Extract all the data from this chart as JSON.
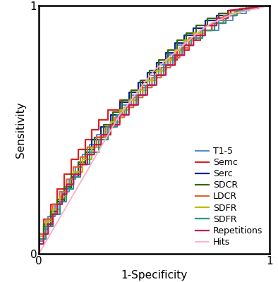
{
  "title": "",
  "xlabel": "1-Specificity",
  "ylabel": "Sensitivity",
  "xlim": [
    0,
    1
  ],
  "ylim": [
    0,
    1
  ],
  "xticks": [
    0,
    1
  ],
  "yticks": [
    0,
    1
  ],
  "grid": true,
  "background_color": "#ffffff",
  "curves": [
    {
      "label": "T1-5",
      "color": "#5588cc",
      "lw": 1.4,
      "x": [
        0,
        0,
        0.02,
        0.02,
        0.04,
        0.04,
        0.07,
        0.07,
        0.1,
        0.1,
        0.13,
        0.13,
        0.16,
        0.16,
        0.19,
        0.19,
        0.22,
        0.22,
        0.25,
        0.25,
        0.28,
        0.28,
        0.32,
        0.32,
        0.36,
        0.36,
        0.4,
        0.4,
        0.44,
        0.44,
        0.48,
        0.48,
        0.52,
        0.52,
        0.56,
        0.56,
        0.6,
        0.6,
        0.64,
        0.64,
        0.68,
        0.68,
        0.72,
        0.72,
        0.78,
        0.78,
        0.84,
        0.84,
        0.9,
        0.9,
        1.0
      ],
      "y": [
        0,
        0.05,
        0.05,
        0.1,
        0.1,
        0.15,
        0.15,
        0.2,
        0.2,
        0.25,
        0.25,
        0.3,
        0.3,
        0.35,
        0.35,
        0.4,
        0.4,
        0.44,
        0.44,
        0.48,
        0.48,
        0.52,
        0.52,
        0.56,
        0.56,
        0.6,
        0.6,
        0.64,
        0.64,
        0.68,
        0.68,
        0.72,
        0.72,
        0.76,
        0.76,
        0.8,
        0.8,
        0.84,
        0.84,
        0.86,
        0.86,
        0.88,
        0.88,
        0.9,
        0.9,
        0.94,
        0.94,
        0.97,
        0.97,
        1.0,
        1.0
      ]
    },
    {
      "label": "Semc",
      "color": "#dd2222",
      "lw": 1.6,
      "x": [
        0,
        0,
        0.02,
        0.02,
        0.05,
        0.05,
        0.08,
        0.08,
        0.11,
        0.11,
        0.14,
        0.14,
        0.17,
        0.17,
        0.2,
        0.2,
        0.23,
        0.23,
        0.26,
        0.26,
        0.3,
        0.3,
        0.35,
        0.35,
        0.4,
        0.4,
        0.45,
        0.45,
        0.5,
        0.5,
        0.55,
        0.55,
        0.6,
        0.6,
        0.65,
        0.65,
        0.7,
        0.7,
        0.75,
        0.75,
        0.8,
        0.8,
        0.85,
        0.85,
        0.9,
        0.9,
        0.95,
        0.95,
        1.0
      ],
      "y": [
        0,
        0.08,
        0.08,
        0.14,
        0.14,
        0.2,
        0.2,
        0.26,
        0.26,
        0.32,
        0.32,
        0.38,
        0.38,
        0.42,
        0.42,
        0.46,
        0.46,
        0.5,
        0.5,
        0.54,
        0.54,
        0.58,
        0.58,
        0.62,
        0.62,
        0.66,
        0.66,
        0.7,
        0.7,
        0.74,
        0.74,
        0.78,
        0.78,
        0.82,
        0.82,
        0.86,
        0.86,
        0.9,
        0.9,
        0.93,
        0.93,
        0.96,
        0.96,
        0.98,
        0.98,
        0.99,
        0.99,
        1.0,
        1.0
      ]
    },
    {
      "label": "Serc",
      "color": "#002299",
      "lw": 1.6,
      "x": [
        0,
        0,
        0.02,
        0.02,
        0.05,
        0.05,
        0.08,
        0.08,
        0.11,
        0.11,
        0.14,
        0.14,
        0.17,
        0.17,
        0.2,
        0.2,
        0.23,
        0.23,
        0.27,
        0.27,
        0.31,
        0.31,
        0.35,
        0.35,
        0.39,
        0.39,
        0.43,
        0.43,
        0.47,
        0.47,
        0.51,
        0.51,
        0.55,
        0.55,
        0.59,
        0.59,
        0.63,
        0.63,
        0.67,
        0.67,
        0.72,
        0.72,
        0.77,
        0.77,
        0.82,
        0.82,
        0.87,
        0.87,
        0.92,
        0.92,
        1.0
      ],
      "y": [
        0,
        0.06,
        0.06,
        0.11,
        0.11,
        0.16,
        0.16,
        0.21,
        0.21,
        0.26,
        0.26,
        0.31,
        0.31,
        0.36,
        0.36,
        0.41,
        0.41,
        0.46,
        0.46,
        0.51,
        0.51,
        0.56,
        0.56,
        0.61,
        0.61,
        0.65,
        0.65,
        0.69,
        0.69,
        0.73,
        0.73,
        0.77,
        0.77,
        0.81,
        0.81,
        0.85,
        0.85,
        0.88,
        0.88,
        0.91,
        0.91,
        0.94,
        0.94,
        0.96,
        0.96,
        0.98,
        0.98,
        0.99,
        0.99,
        1.0,
        1.0
      ]
    },
    {
      "label": "SDCR",
      "color": "#336600",
      "lw": 1.6,
      "x": [
        0,
        0,
        0.02,
        0.02,
        0.05,
        0.05,
        0.08,
        0.08,
        0.11,
        0.11,
        0.14,
        0.14,
        0.17,
        0.17,
        0.2,
        0.2,
        0.24,
        0.24,
        0.28,
        0.28,
        0.32,
        0.32,
        0.36,
        0.36,
        0.4,
        0.4,
        0.44,
        0.44,
        0.48,
        0.48,
        0.52,
        0.52,
        0.56,
        0.56,
        0.6,
        0.6,
        0.64,
        0.64,
        0.68,
        0.68,
        0.73,
        0.73,
        0.78,
        0.78,
        0.83,
        0.83,
        0.88,
        0.88,
        0.93,
        0.93,
        1.0
      ],
      "y": [
        0,
        0.06,
        0.06,
        0.12,
        0.12,
        0.17,
        0.17,
        0.22,
        0.22,
        0.27,
        0.27,
        0.32,
        0.32,
        0.37,
        0.37,
        0.42,
        0.42,
        0.47,
        0.47,
        0.52,
        0.52,
        0.57,
        0.57,
        0.62,
        0.62,
        0.66,
        0.66,
        0.7,
        0.7,
        0.74,
        0.74,
        0.78,
        0.78,
        0.82,
        0.82,
        0.86,
        0.86,
        0.89,
        0.89,
        0.92,
        0.92,
        0.95,
        0.95,
        0.97,
        0.97,
        0.98,
        0.98,
        0.99,
        0.99,
        1.0,
        1.0
      ]
    },
    {
      "label": "LDCR",
      "color": "#dd6633",
      "lw": 1.6,
      "x": [
        0,
        0,
        0.03,
        0.03,
        0.06,
        0.06,
        0.09,
        0.09,
        0.12,
        0.12,
        0.15,
        0.15,
        0.18,
        0.18,
        0.21,
        0.21,
        0.25,
        0.25,
        0.29,
        0.29,
        0.33,
        0.33,
        0.37,
        0.37,
        0.41,
        0.41,
        0.45,
        0.45,
        0.49,
        0.49,
        0.53,
        0.53,
        0.57,
        0.57,
        0.61,
        0.61,
        0.65,
        0.65,
        0.7,
        0.7,
        0.75,
        0.75,
        0.8,
        0.8,
        0.85,
        0.85,
        0.9,
        0.9,
        1.0
      ],
      "y": [
        0,
        0.08,
        0.08,
        0.14,
        0.14,
        0.2,
        0.2,
        0.25,
        0.25,
        0.3,
        0.3,
        0.35,
        0.35,
        0.39,
        0.39,
        0.43,
        0.43,
        0.47,
        0.47,
        0.51,
        0.51,
        0.55,
        0.55,
        0.59,
        0.59,
        0.63,
        0.63,
        0.67,
        0.67,
        0.71,
        0.71,
        0.75,
        0.75,
        0.79,
        0.79,
        0.83,
        0.83,
        0.87,
        0.87,
        0.9,
        0.9,
        0.93,
        0.93,
        0.96,
        0.96,
        0.98,
        0.98,
        0.99,
        1.0
      ]
    },
    {
      "label": "SDFR",
      "color": "#bbbb00",
      "lw": 1.6,
      "x": [
        0,
        0,
        0.03,
        0.03,
        0.06,
        0.06,
        0.09,
        0.09,
        0.12,
        0.12,
        0.15,
        0.15,
        0.19,
        0.19,
        0.23,
        0.23,
        0.27,
        0.27,
        0.31,
        0.31,
        0.35,
        0.35,
        0.39,
        0.39,
        0.43,
        0.43,
        0.47,
        0.47,
        0.51,
        0.51,
        0.55,
        0.55,
        0.59,
        0.59,
        0.63,
        0.63,
        0.67,
        0.67,
        0.72,
        0.72,
        0.77,
        0.77,
        0.82,
        0.82,
        0.87,
        0.87,
        0.92,
        0.92,
        1.0
      ],
      "y": [
        0,
        0.07,
        0.07,
        0.13,
        0.13,
        0.18,
        0.18,
        0.23,
        0.23,
        0.28,
        0.28,
        0.33,
        0.33,
        0.38,
        0.38,
        0.43,
        0.43,
        0.48,
        0.48,
        0.53,
        0.53,
        0.58,
        0.58,
        0.62,
        0.62,
        0.66,
        0.66,
        0.7,
        0.7,
        0.74,
        0.74,
        0.78,
        0.78,
        0.82,
        0.82,
        0.86,
        0.86,
        0.89,
        0.89,
        0.92,
        0.92,
        0.95,
        0.95,
        0.97,
        0.97,
        0.99,
        0.99,
        1.0,
        1.0
      ]
    },
    {
      "label": "SDFR",
      "color": "#229988",
      "lw": 1.6,
      "x": [
        0,
        0,
        0.03,
        0.03,
        0.06,
        0.06,
        0.09,
        0.09,
        0.12,
        0.12,
        0.15,
        0.15,
        0.18,
        0.18,
        0.22,
        0.22,
        0.26,
        0.26,
        0.3,
        0.3,
        0.34,
        0.34,
        0.38,
        0.38,
        0.42,
        0.42,
        0.46,
        0.46,
        0.5,
        0.5,
        0.54,
        0.54,
        0.58,
        0.58,
        0.62,
        0.62,
        0.66,
        0.66,
        0.71,
        0.71,
        0.76,
        0.76,
        0.81,
        0.81,
        0.86,
        0.86,
        0.91,
        0.91,
        1.0
      ],
      "y": [
        0,
        0.06,
        0.06,
        0.11,
        0.11,
        0.16,
        0.16,
        0.21,
        0.21,
        0.26,
        0.26,
        0.31,
        0.31,
        0.36,
        0.36,
        0.41,
        0.41,
        0.46,
        0.46,
        0.51,
        0.51,
        0.56,
        0.56,
        0.6,
        0.6,
        0.64,
        0.64,
        0.68,
        0.68,
        0.72,
        0.72,
        0.76,
        0.76,
        0.8,
        0.8,
        0.84,
        0.84,
        0.87,
        0.87,
        0.9,
        0.9,
        0.93,
        0.93,
        0.96,
        0.96,
        0.98,
        0.98,
        1.0,
        1.0
      ]
    },
    {
      "label": "Repetitions",
      "color": "#cc1155",
      "lw": 1.6,
      "x": [
        0,
        0,
        0.02,
        0.02,
        0.04,
        0.04,
        0.06,
        0.06,
        0.08,
        0.08,
        0.1,
        0.1,
        0.12,
        0.12,
        0.15,
        0.15,
        0.18,
        0.18,
        0.21,
        0.21,
        0.24,
        0.24,
        0.27,
        0.27,
        0.31,
        0.31,
        0.35,
        0.35,
        0.39,
        0.39,
        0.43,
        0.43,
        0.47,
        0.47,
        0.51,
        0.51,
        0.55,
        0.55,
        0.59,
        0.59,
        0.63,
        0.63,
        0.67,
        0.67,
        0.72,
        0.72,
        0.77,
        0.77,
        0.82,
        0.82,
        1.0
      ],
      "y": [
        0,
        0.04,
        0.04,
        0.08,
        0.08,
        0.12,
        0.12,
        0.16,
        0.16,
        0.2,
        0.2,
        0.24,
        0.24,
        0.28,
        0.28,
        0.32,
        0.32,
        0.36,
        0.36,
        0.4,
        0.4,
        0.44,
        0.44,
        0.48,
        0.48,
        0.52,
        0.52,
        0.56,
        0.56,
        0.6,
        0.6,
        0.64,
        0.64,
        0.68,
        0.68,
        0.72,
        0.72,
        0.76,
        0.76,
        0.8,
        0.8,
        0.84,
        0.84,
        0.88,
        0.88,
        0.92,
        0.92,
        0.95,
        0.95,
        0.98,
        1.0
      ]
    },
    {
      "label": "Hits",
      "color": "#ffaacc",
      "lw": 1.3,
      "x": [
        0,
        0.05,
        0.1,
        0.15,
        0.2,
        0.25,
        0.3,
        0.35,
        0.4,
        0.45,
        0.5,
        0.55,
        0.6,
        0.65,
        0.7,
        0.75,
        0.8,
        0.85,
        0.9,
        0.95,
        1.0
      ],
      "y": [
        0,
        0.08,
        0.16,
        0.24,
        0.32,
        0.4,
        0.48,
        0.56,
        0.62,
        0.68,
        0.74,
        0.78,
        0.82,
        0.86,
        0.9,
        0.93,
        0.95,
        0.97,
        0.98,
        0.99,
        1.0
      ]
    }
  ],
  "legend_fontsize": 9.0,
  "axis_fontsize": 11,
  "tick_fontsize": 11,
  "grid_color": "#cccccc",
  "grid_lw": 0.8,
  "spine_lw": 1.8
}
